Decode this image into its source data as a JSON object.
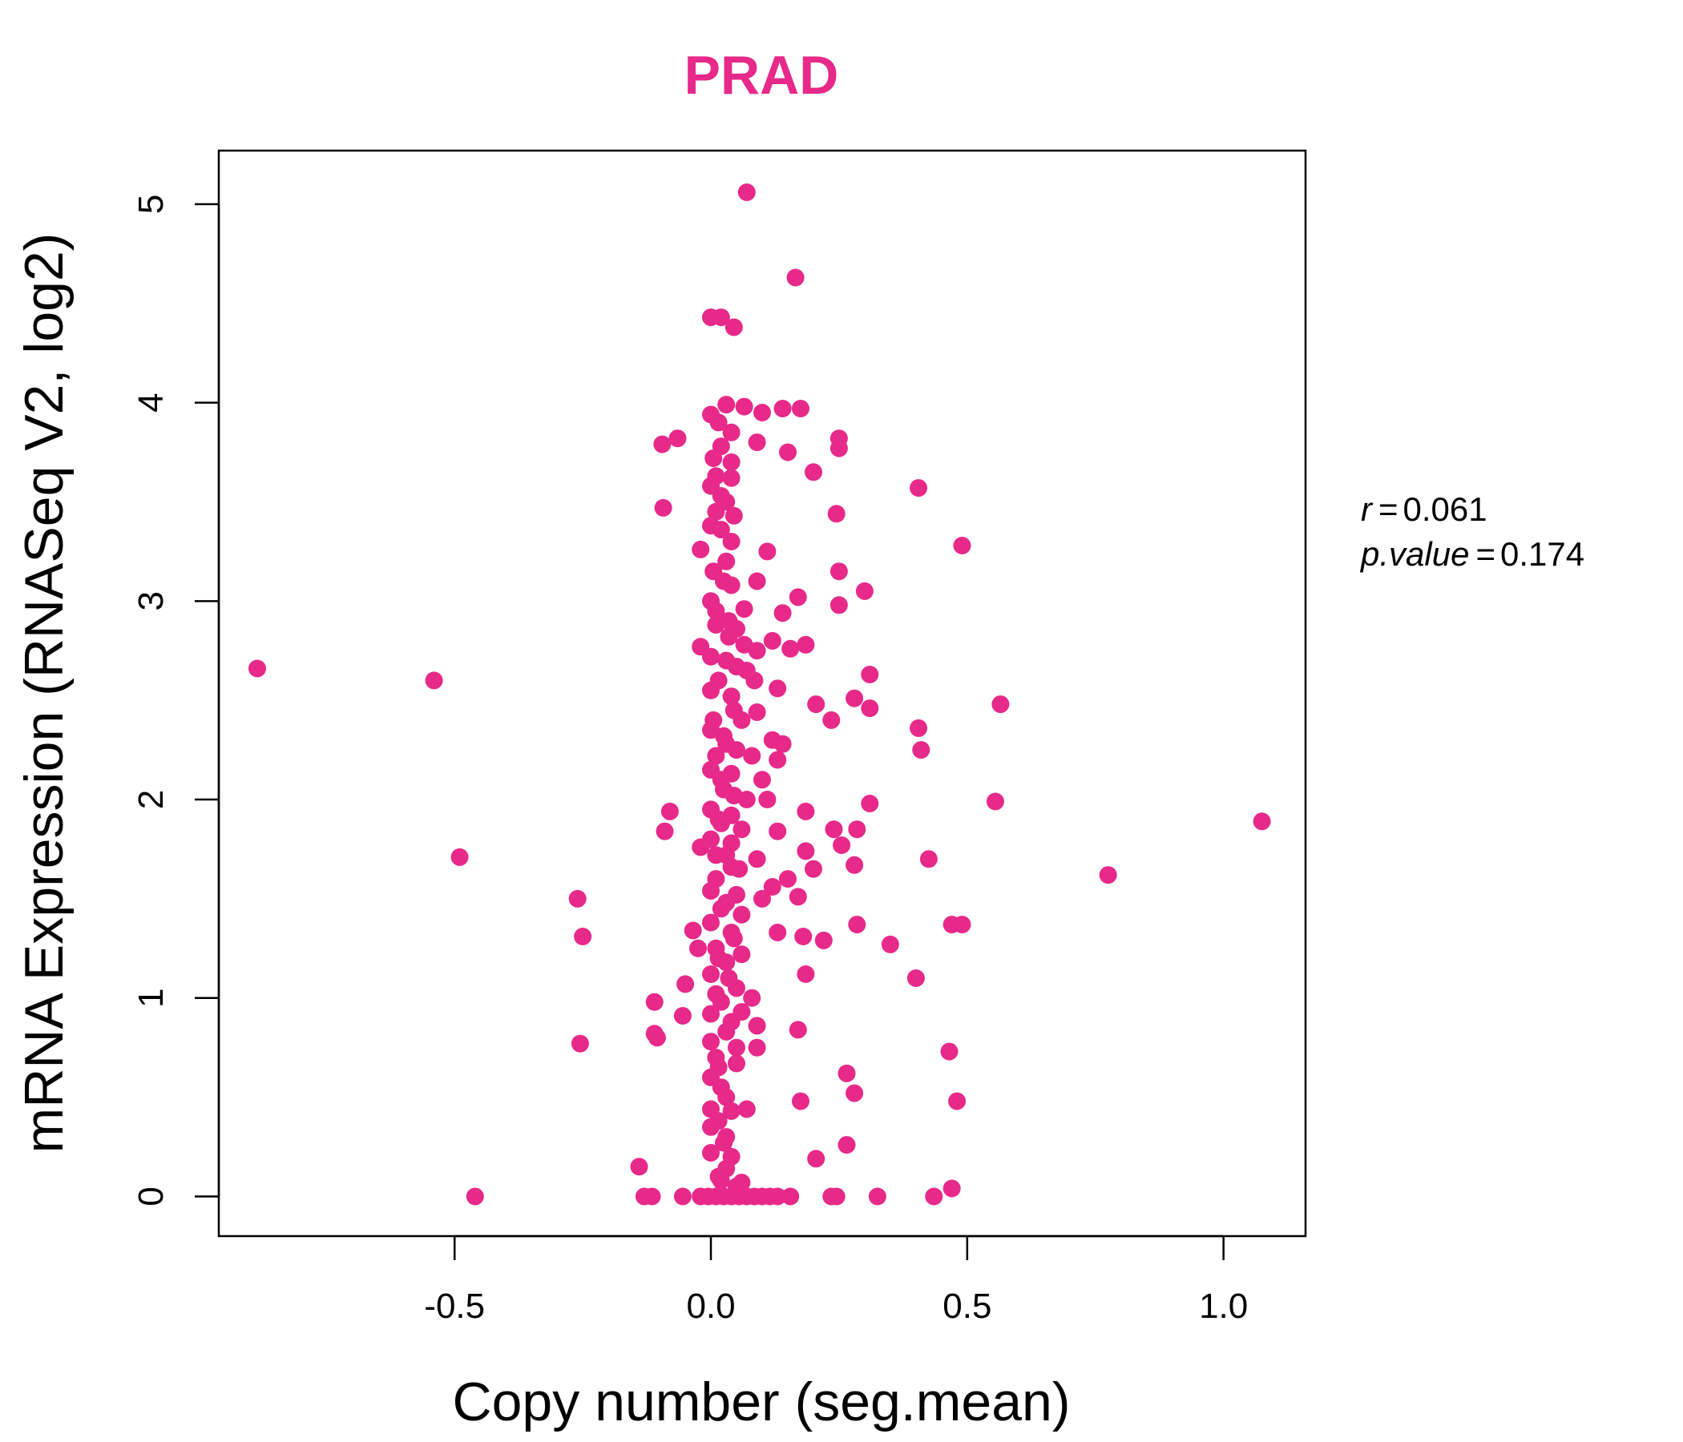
{
  "colors": {
    "points": "#E7298A",
    "title": "#E7298A",
    "axis": "#000000"
  },
  "stats": {
    "r_label": "r",
    "r_value": "0.061",
    "p_label": "p.value",
    "p_value": "0.174"
  },
  "chart_data": {
    "type": "scatter",
    "title": "PRAD",
    "xlabel": "Copy number (seg.mean)",
    "ylabel": "mRNA Expression (RNASeq V2, log2)",
    "xlim": [
      -0.96,
      1.16
    ],
    "ylim": [
      -0.2,
      5.27
    ],
    "xticks": [
      -0.5,
      0.0,
      0.5,
      1.0
    ],
    "xtick_labels": [
      "-0.5",
      "0.0",
      "0.5",
      "1.0"
    ],
    "yticks": [
      0,
      1,
      2,
      3,
      4,
      5
    ],
    "ytick_labels": [
      "0",
      "1",
      "2",
      "3",
      "4",
      "5"
    ],
    "grid": false,
    "legend": "none",
    "points": [
      [
        0.07,
        5.06
      ],
      [
        0.165,
        4.63
      ],
      [
        0.0,
        4.43
      ],
      [
        0.02,
        4.43
      ],
      [
        0.045,
        4.38
      ],
      [
        0.03,
        3.99
      ],
      [
        0.065,
        3.98
      ],
      [
        0.1,
        3.95
      ],
      [
        0.14,
        3.97
      ],
      [
        0.175,
        3.97
      ],
      [
        0.0,
        3.94
      ],
      [
        0.015,
        3.9
      ],
      [
        0.04,
        3.85
      ],
      [
        -0.065,
        3.82
      ],
      [
        -0.095,
        3.79
      ],
      [
        0.02,
        3.78
      ],
      [
        0.09,
        3.8
      ],
      [
        0.25,
        3.82
      ],
      [
        0.25,
        3.77
      ],
      [
        0.15,
        3.75
      ],
      [
        0.005,
        3.72
      ],
      [
        0.04,
        3.7
      ],
      [
        0.2,
        3.65
      ],
      [
        0.04,
        3.62
      ],
      [
        0.0,
        3.58
      ],
      [
        0.02,
        3.53
      ],
      [
        0.405,
        3.57
      ],
      [
        -0.093,
        3.47
      ],
      [
        0.01,
        3.45
      ],
      [
        0.045,
        3.43
      ],
      [
        0.245,
        3.44
      ],
      [
        0.02,
        3.36
      ],
      [
        0.04,
        3.3
      ],
      [
        -0.02,
        3.26
      ],
      [
        0.11,
        3.25
      ],
      [
        0.49,
        3.28
      ],
      [
        0.03,
        3.2
      ],
      [
        0.005,
        3.15
      ],
      [
        0.25,
        3.15
      ],
      [
        0.09,
        3.1
      ],
      [
        0.04,
        3.08
      ],
      [
        0.17,
        3.02
      ],
      [
        0.3,
        3.05
      ],
      [
        0.0,
        3.0
      ],
      [
        0.065,
        2.96
      ],
      [
        0.25,
        2.98
      ],
      [
        0.14,
        2.94
      ],
      [
        0.01,
        2.88
      ],
      [
        0.035,
        2.9
      ],
      [
        0.05,
        2.86
      ],
      [
        0.12,
        2.8
      ],
      [
        0.065,
        2.78
      ],
      [
        0.09,
        2.75
      ],
      [
        0.155,
        2.76
      ],
      [
        0.185,
        2.78
      ],
      [
        -0.02,
        2.77
      ],
      [
        0.0,
        2.72
      ],
      [
        0.03,
        2.7
      ],
      [
        0.05,
        2.67
      ],
      [
        0.07,
        2.65
      ],
      [
        0.31,
        2.63
      ],
      [
        -0.885,
        2.66
      ],
      [
        -0.54,
        2.6
      ],
      [
        0.085,
        2.6
      ],
      [
        0.13,
        2.56
      ],
      [
        0.0,
        2.55
      ],
      [
        0.04,
        2.52
      ],
      [
        0.28,
        2.51
      ],
      [
        0.205,
        2.48
      ],
      [
        0.565,
        2.48
      ],
      [
        0.31,
        2.46
      ],
      [
        0.09,
        2.44
      ],
      [
        0.06,
        2.4
      ],
      [
        0.235,
        2.4
      ],
      [
        0.0,
        2.35
      ],
      [
        0.025,
        2.32
      ],
      [
        0.12,
        2.3
      ],
      [
        0.405,
        2.36
      ],
      [
        0.14,
        2.28
      ],
      [
        0.05,
        2.25
      ],
      [
        0.01,
        2.22
      ],
      [
        0.08,
        2.22
      ],
      [
        0.13,
        2.2
      ],
      [
        0.41,
        2.25
      ],
      [
        0.0,
        2.15
      ],
      [
        0.04,
        2.13
      ],
      [
        0.1,
        2.1
      ],
      [
        0.025,
        2.05
      ],
      [
        0.07,
        2.0
      ],
      [
        0.11,
        2.0
      ],
      [
        0.31,
        1.98
      ],
      [
        0.555,
        1.99
      ],
      [
        0.0,
        1.95
      ],
      [
        0.04,
        1.92
      ],
      [
        -0.08,
        1.94
      ],
      [
        0.185,
        1.94
      ],
      [
        1.075,
        1.89
      ],
      [
        0.02,
        1.88
      ],
      [
        0.06,
        1.85
      ],
      [
        -0.09,
        1.84
      ],
      [
        0.13,
        1.84
      ],
      [
        0.24,
        1.85
      ],
      [
        0.285,
        1.85
      ],
      [
        0.0,
        1.8
      ],
      [
        0.04,
        1.78
      ],
      [
        0.255,
        1.77
      ],
      [
        -0.02,
        1.76
      ],
      [
        0.185,
        1.74
      ],
      [
        0.01,
        1.72
      ],
      [
        0.09,
        1.7
      ],
      [
        -0.49,
        1.71
      ],
      [
        0.425,
        1.7
      ],
      [
        0.28,
        1.67
      ],
      [
        0.04,
        1.66
      ],
      [
        0.2,
        1.65
      ],
      [
        0.775,
        1.62
      ],
      [
        0.15,
        1.6
      ],
      [
        0.12,
        1.56
      ],
      [
        0.0,
        1.54
      ],
      [
        0.05,
        1.52
      ],
      [
        0.17,
        1.51
      ],
      [
        -0.26,
        1.5
      ],
      [
        0.1,
        1.5
      ],
      [
        0.02,
        1.45
      ],
      [
        0.06,
        1.42
      ],
      [
        0.0,
        1.38
      ],
      [
        0.285,
        1.37
      ],
      [
        0.47,
        1.37
      ],
      [
        0.49,
        1.37
      ],
      [
        -0.035,
        1.34
      ],
      [
        0.04,
        1.33
      ],
      [
        0.13,
        1.33
      ],
      [
        0.18,
        1.31
      ],
      [
        -0.25,
        1.31
      ],
      [
        0.22,
        1.29
      ],
      [
        0.35,
        1.27
      ],
      [
        0.01,
        1.25
      ],
      [
        -0.025,
        1.25
      ],
      [
        0.06,
        1.22
      ],
      [
        0.03,
        1.18
      ],
      [
        0.0,
        1.12
      ],
      [
        0.185,
        1.12
      ],
      [
        0.4,
        1.1
      ],
      [
        -0.05,
        1.07
      ],
      [
        0.05,
        1.05
      ],
      [
        0.08,
        1.0
      ],
      [
        0.02,
        0.98
      ],
      [
        -0.11,
        0.98
      ],
      [
        0.0,
        0.92
      ],
      [
        0.06,
        0.93
      ],
      [
        -0.055,
        0.91
      ],
      [
        0.04,
        0.88
      ],
      [
        0.09,
        0.86
      ],
      [
        -0.11,
        0.82
      ],
      [
        0.17,
        0.84
      ],
      [
        -0.105,
        0.8
      ],
      [
        0.0,
        0.78
      ],
      [
        -0.255,
        0.77
      ],
      [
        0.05,
        0.75
      ],
      [
        0.09,
        0.75
      ],
      [
        0.465,
        0.73
      ],
      [
        0.01,
        0.7
      ],
      [
        0.05,
        0.67
      ],
      [
        0.265,
        0.62
      ],
      [
        0.0,
        0.6
      ],
      [
        0.02,
        0.55
      ],
      [
        0.28,
        0.52
      ],
      [
        0.175,
        0.48
      ],
      [
        0.48,
        0.48
      ],
      [
        0.0,
        0.44
      ],
      [
        0.04,
        0.43
      ],
      [
        0.07,
        0.44
      ],
      [
        0.0,
        0.35
      ],
      [
        0.03,
        0.3
      ],
      [
        0.265,
        0.26
      ],
      [
        0.0,
        0.22
      ],
      [
        0.04,
        0.2
      ],
      [
        0.205,
        0.19
      ],
      [
        -0.14,
        0.15
      ],
      [
        0.03,
        0.14
      ],
      [
        0.02,
        0.08
      ],
      [
        0.06,
        0.07
      ],
      [
        0.47,
        0.04
      ],
      [
        -0.46,
        0.0
      ],
      [
        -0.13,
        0.0
      ],
      [
        -0.115,
        0.0
      ],
      [
        -0.055,
        0.0
      ],
      [
        -0.02,
        0.0
      ],
      [
        -0.005,
        0.0
      ],
      [
        0.01,
        0.0
      ],
      [
        0.025,
        0.0
      ],
      [
        0.04,
        0.0
      ],
      [
        0.055,
        0.0
      ],
      [
        0.07,
        0.0
      ],
      [
        0.085,
        0.0
      ],
      [
        0.1,
        0.0
      ],
      [
        0.115,
        0.0
      ],
      [
        0.13,
        0.0
      ],
      [
        0.155,
        0.0
      ],
      [
        0.235,
        0.0
      ],
      [
        0.245,
        0.0
      ],
      [
        0.325,
        0.0
      ],
      [
        0.435,
        0.0
      ],
      [
        0.01,
        3.63
      ],
      [
        0.03,
        3.5
      ],
      [
        0.0,
        3.38
      ],
      [
        0.025,
        3.1
      ],
      [
        0.01,
        2.95
      ],
      [
        0.035,
        2.82
      ],
      [
        0.015,
        2.6
      ],
      [
        0.045,
        2.45
      ],
      [
        0.005,
        2.4
      ],
      [
        0.03,
        2.28
      ],
      [
        0.02,
        2.1
      ],
      [
        0.045,
        2.02
      ],
      [
        0.015,
        1.9
      ],
      [
        0.03,
        1.72
      ],
      [
        0.055,
        1.65
      ],
      [
        0.01,
        1.6
      ],
      [
        0.03,
        1.48
      ],
      [
        0.045,
        1.3
      ],
      [
        0.015,
        1.2
      ],
      [
        0.035,
        1.1
      ],
      [
        0.01,
        1.02
      ],
      [
        0.03,
        0.83
      ],
      [
        0.015,
        0.65
      ],
      [
        0.03,
        0.5
      ],
      [
        0.015,
        0.38
      ],
      [
        0.025,
        0.27
      ],
      [
        0.015,
        0.1
      ],
      [
        0.05,
        0.05
      ]
    ]
  }
}
